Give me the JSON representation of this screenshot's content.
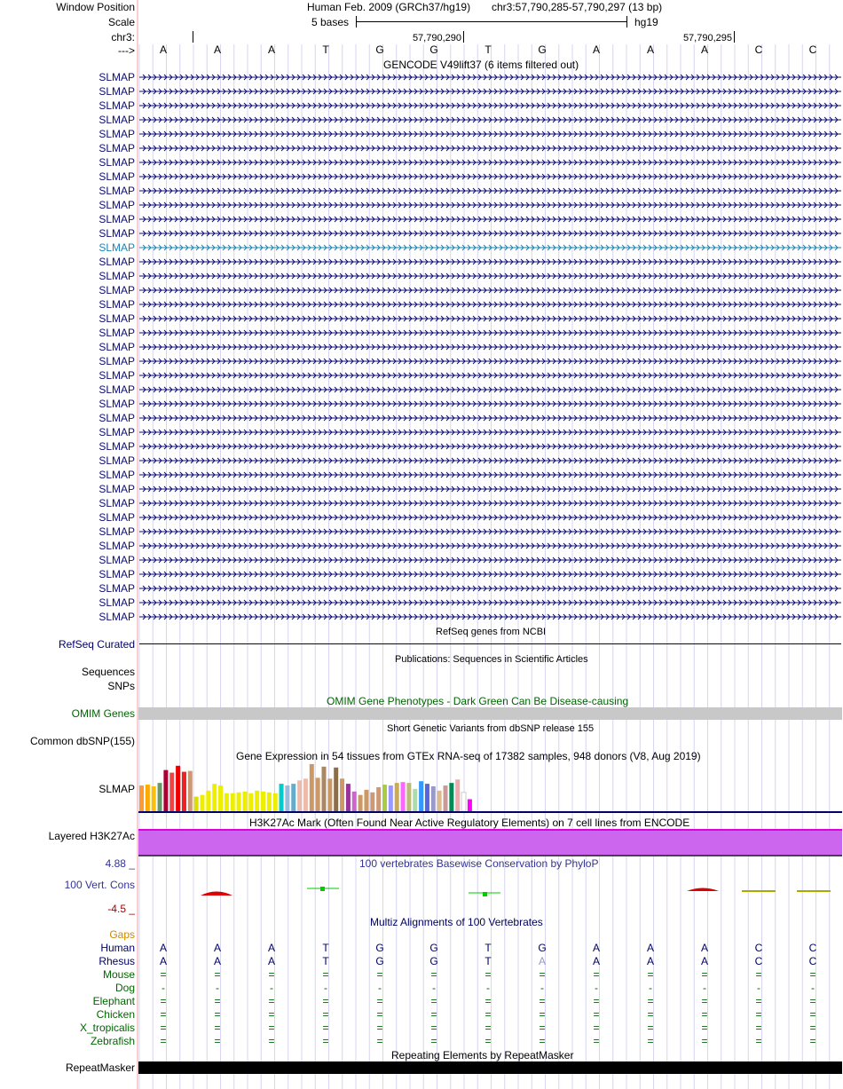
{
  "header": {
    "window_position_label": "Window Position",
    "assembly_title": "Human Feb. 2009 (GRCh37/hg19)",
    "position": "chr3:57,790,285-57,790,297 (13 bp)",
    "scale_label": "Scale",
    "scale_bases": "5 bases",
    "scale_db": "hg19",
    "chrom_label": "chr3:",
    "ruler_pos_1": "57,790,290",
    "ruler_pos_2": "57,790,295",
    "strand_label": "--->",
    "bases": [
      "A",
      "A",
      "A",
      "T",
      "G",
      "G",
      "T",
      "G",
      "A",
      "A",
      "A",
      "C",
      "C"
    ]
  },
  "gencode": {
    "title": "GENCODE V49lift37 (6 items filtered out)",
    "gene_labels": [
      "SLMAP",
      "SLMAP",
      "SLMAP",
      "SLMAP",
      "SLMAP",
      "SLMAP",
      "SLMAP",
      "SLMAP",
      "SLMAP",
      "SLMAP",
      "SLMAP",
      "SLMAP",
      "SLMAP",
      "SLMAP",
      "SLMAP",
      "SLMAP",
      "SLMAP",
      "SLMAP",
      "SLMAP",
      "SLMAP",
      "SLMAP",
      "SLMAP",
      "SLMAP",
      "SLMAP",
      "SLMAP",
      "SLMAP",
      "SLMAP",
      "SLMAP",
      "SLMAP",
      "SLMAP",
      "SLMAP",
      "SLMAP",
      "SLMAP",
      "SLMAP",
      "SLMAP",
      "SLMAP",
      "SLMAP",
      "SLMAP",
      "SLMAP"
    ],
    "highlight_index": 12,
    "colors": {
      "normal": "#0c0c78",
      "highlight": "#1a85b5"
    }
  },
  "refseq": {
    "title": "RefSeq genes from NCBI",
    "label": "RefSeq Curated",
    "color": "#000066"
  },
  "publications": {
    "title": "Publications: Sequences in Scientific Articles",
    "label_1": "Sequences",
    "label_2": "SNPs"
  },
  "omim": {
    "title": "OMIM Gene Phenotypes - Dark Green Can Be Disease-causing",
    "label": "OMIM Genes",
    "color": "#006600",
    "bar_color": "#c8c8c8"
  },
  "dbsnp": {
    "title": "Short Genetic Variants from dbSNP release 155",
    "label": "Common dbSNP(155)"
  },
  "gtex": {
    "title": "Gene Expression in 54 tissues from GTEx RNA-seq of 17382 samples, 948 donors (V8, Aug 2019)",
    "label": "SLMAP",
    "colors": [
      "#ff9933",
      "#ffaa00",
      "#fcbe0c",
      "#669966",
      "#aa0033",
      "#ee4444",
      "#ee0000",
      "#ee2222",
      "#cc9977",
      "#dddd00",
      "#eeee00",
      "#eeee00",
      "#eeee00",
      "#eeee00",
      "#eeee00",
      "#eeee00",
      "#eeee00",
      "#eeee00",
      "#eeee00",
      "#eeee00",
      "#eeee00",
      "#eeee00",
      "#eeee00",
      "#00cccc",
      "#99bbdd",
      "#66aacc",
      "#eebbaa",
      "#eebbaa",
      "#cc9966",
      "#cc9966",
      "#aa8866",
      "#cc9966",
      "#8c6d4b",
      "#cc9966",
      "#993399",
      "#cc66cc",
      "#cc9966",
      "#cc9966",
      "#cc9977",
      "#cc9977",
      "#aacc44",
      "#9999ff",
      "#ccaa55",
      "#ff66ff",
      "#bbbb77",
      "#aaddaa",
      "#3399ff",
      "#5566dd",
      "#9999cc",
      "#ddbb88",
      "#cc9999",
      "#008855",
      "#eeaaaa",
      "#ffffff",
      "#ff00ff"
    ],
    "values": [
      30,
      31,
      29,
      33,
      48,
      45,
      53,
      46,
      47,
      17,
      19,
      24,
      32,
      30,
      21,
      21,
      22,
      23,
      21,
      24,
      23,
      22,
      21,
      32,
      30,
      32,
      36,
      38,
      55,
      39,
      52,
      38,
      51,
      38,
      32,
      23,
      19,
      25,
      22,
      28,
      31,
      30,
      33,
      34,
      33,
      26,
      35,
      32,
      29,
      24,
      30,
      33,
      37,
      22,
      14
    ]
  },
  "h3k27ac": {
    "title": "H3K27Ac Mark (Often Found Near Active Regulatory Elements) on 7 cell lines from ENCODE",
    "label": "Layered H3K27Ac",
    "fill": "#cc66ee",
    "edge": "#dd00dd"
  },
  "phylop": {
    "title": "100 vertebrates Basewise Conservation by PhyloP",
    "label": "100 Vert. Cons",
    "max": "4.88 _",
    "min": "-4.5 _",
    "color": "#333399"
  },
  "multiz": {
    "title": "Multiz Alignments of 100 Vertebrates",
    "gaps_label": "Gaps",
    "gaps_color": "#cc8800",
    "species": [
      {
        "name": "Human",
        "color": "#000066",
        "row": [
          "A",
          "A",
          "A",
          "T",
          "G",
          "G",
          "T",
          "G",
          "A",
          "A",
          "A",
          "C",
          "C"
        ]
      },
      {
        "name": "Rhesus",
        "color": "#000066",
        "row": [
          "A",
          "A",
          "A",
          "T",
          "G",
          "G",
          "T",
          "A",
          "A",
          "A",
          "A",
          "C",
          "C"
        ]
      },
      {
        "name": "Mouse",
        "color": "#006600",
        "row": [
          "=",
          "=",
          "=",
          "=",
          "=",
          "=",
          "=",
          "=",
          "=",
          "=",
          "=",
          "=",
          "="
        ]
      },
      {
        "name": "Dog",
        "color": "#006600",
        "row": [
          "-",
          "-",
          "-",
          "-",
          "-",
          "-",
          "-",
          "-",
          "-",
          "-",
          "-",
          "-",
          "-"
        ]
      },
      {
        "name": "Elephant",
        "color": "#006600",
        "row": [
          "=",
          "=",
          "=",
          "=",
          "=",
          "=",
          "=",
          "=",
          "=",
          "=",
          "=",
          "=",
          "="
        ]
      },
      {
        "name": "Chicken",
        "color": "#006600",
        "row": [
          "=",
          "=",
          "=",
          "=",
          "=",
          "=",
          "=",
          "=",
          "=",
          "=",
          "=",
          "=",
          "="
        ]
      },
      {
        "name": "X_tropicalis",
        "color": "#006600",
        "row": [
          "=",
          "=",
          "=",
          "=",
          "=",
          "=",
          "=",
          "=",
          "=",
          "=",
          "=",
          "=",
          "="
        ]
      },
      {
        "name": "Zebrafish",
        "color": "#006600",
        "row": [
          "=",
          "=",
          "=",
          "=",
          "=",
          "=",
          "=",
          "=",
          "=",
          "=",
          "=",
          "=",
          "="
        ]
      }
    ]
  },
  "repeatmasker": {
    "title": "Repeating Elements by RepeatMasker",
    "label": "RepeatMasker"
  }
}
